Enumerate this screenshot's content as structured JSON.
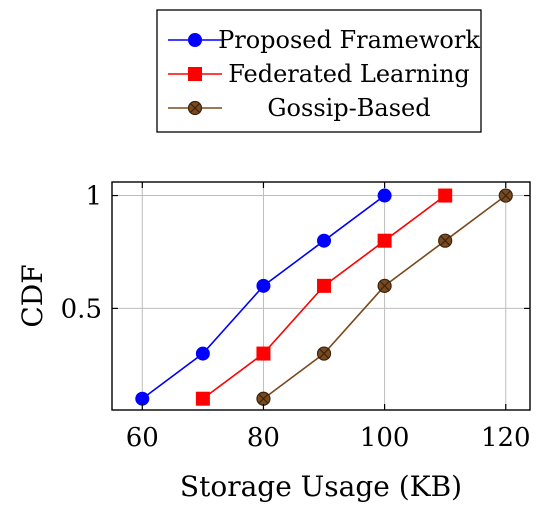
{
  "chart_data": {
    "type": "line",
    "title": "",
    "xlabel": "Storage Usage (KB)",
    "ylabel": "CDF",
    "xlim": [
      55,
      124
    ],
    "ylim": [
      0.05,
      1.06
    ],
    "x_ticks": [
      60,
      80,
      100,
      120
    ],
    "y_ticks": [
      0.5,
      1
    ],
    "x_tick_labels": [
      "60",
      "80",
      "100",
      "120"
    ],
    "y_tick_labels": [
      "0.5",
      "1"
    ],
    "grid": true,
    "legend_position": "above plot",
    "series": [
      {
        "name": "Proposed Framework",
        "color": "#0000ff",
        "marker": "circle",
        "x": [
          60,
          70,
          80,
          90,
          100
        ],
        "y": [
          0.1,
          0.3,
          0.6,
          0.8,
          1.0
        ]
      },
      {
        "name": "Federated Learning",
        "color": "#ff0000",
        "marker": "square",
        "x": [
          70,
          80,
          90,
          100,
          110
        ],
        "y": [
          0.1,
          0.3,
          0.6,
          0.8,
          1.0
        ]
      },
      {
        "name": "Gossip-Based",
        "color": "#7a4a1e",
        "marker": "otimes",
        "x": [
          80,
          90,
          100,
          110,
          120
        ],
        "y": [
          0.1,
          0.3,
          0.6,
          0.8,
          1.0
        ]
      }
    ]
  }
}
